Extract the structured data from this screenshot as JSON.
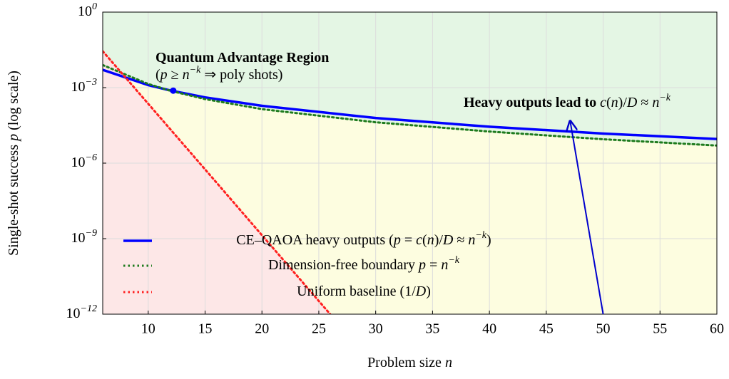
{
  "chart_data": {
    "type": "line",
    "xlabel": [
      {
        "text": "Problem size "
      },
      {
        "text": "n",
        "style": "italic"
      }
    ],
    "ylabel": [
      {
        "text": "Single-shot success "
      },
      {
        "text": "p",
        "style": "italic"
      },
      {
        "text": " (log scale)"
      }
    ],
    "xlim": [
      6,
      60
    ],
    "xticks": [
      10,
      15,
      20,
      25,
      30,
      35,
      40,
      45,
      50,
      55,
      60
    ],
    "ylim": [
      1e-12,
      1
    ],
    "yscale": "log",
    "yticks": [
      {
        "value": 1,
        "label": [
          {
            "text": "10"
          },
          {
            "text": "0",
            "style": "sup"
          }
        ]
      },
      {
        "value": 0.001,
        "label": [
          {
            "text": "10"
          },
          {
            "text": "−3",
            "style": "sup"
          }
        ]
      },
      {
        "value": 1e-06,
        "label": [
          {
            "text": "10"
          },
          {
            "text": "−6",
            "style": "sup"
          }
        ]
      },
      {
        "value": 1e-09,
        "label": [
          {
            "text": "10"
          },
          {
            "text": "−9",
            "style": "sup"
          }
        ]
      },
      {
        "value": 1e-12,
        "label": [
          {
            "text": "10"
          },
          {
            "text": "−12",
            "style": "sup"
          }
        ]
      }
    ],
    "grid": true,
    "legend": "lower left",
    "series": [
      {
        "name": [
          {
            "text": "CE–QAOA heavy outputs ("
          },
          {
            "text": "p",
            "style": "italic"
          },
          {
            "text": " = "
          },
          {
            "text": "c",
            "style": "italic"
          },
          {
            "text": "("
          },
          {
            "text": "n",
            "style": "italic"
          },
          {
            "text": ")/"
          },
          {
            "text": "D",
            "style": "italic"
          },
          {
            "text": " ≈ "
          },
          {
            "text": "n",
            "style": "italic"
          },
          {
            "text": "−k",
            "style": "sup"
          },
          {
            "text": ")"
          }
        ],
        "color": "#0000ff",
        "style": "solid",
        "x": [
          6,
          10,
          12,
          15,
          20,
          30,
          40,
          50,
          60
        ],
        "values": [
          0.0051,
          0.00126,
          0.00076,
          0.00041,
          0.00019,
          6.2e-05,
          2.8e-05,
          1.5e-05,
          9.1e-06
        ]
      },
      {
        "name": [
          {
            "text": "Dimension-free boundary "
          },
          {
            "text": "p",
            "style": "italic"
          },
          {
            "text": " = "
          },
          {
            "text": "n",
            "style": "italic"
          },
          {
            "text": "−k",
            "style": "sup"
          }
        ],
        "color": "#1e7b1e",
        "style": "dotted",
        "x": [
          6,
          10,
          12,
          15,
          20,
          30,
          40,
          50,
          60
        ],
        "values": [
          0.0079,
          0.0014,
          0.00074,
          0.00035,
          0.00014,
          4.2e-05,
          1.8e-05,
          8.9e-06,
          5e-06
        ]
      },
      {
        "name": [
          {
            "text": "Uniform baseline (1/"
          },
          {
            "text": "D",
            "style": "italic"
          },
          {
            "text": ")"
          }
        ],
        "color": "#ff2020",
        "style": "dotted",
        "x": [
          6,
          16,
          26
        ],
        "values": [
          0.028,
          1.7e-07,
          1e-12
        ]
      }
    ],
    "point": {
      "x": 12.2,
      "value": 0.00076,
      "color": "#0000ff"
    },
    "region_label": {
      "title": [
        {
          "text": "Quantum Advantage Region",
          "style": "bold"
        }
      ],
      "subtitle": [
        {
          "text": "("
        },
        {
          "text": "p",
          "style": "italic"
        },
        {
          "text": " ≥ "
        },
        {
          "text": "n",
          "style": "italic"
        },
        {
          "text": "−k",
          "style": "sup"
        },
        {
          "text": " ⇒ poly shots)"
        }
      ],
      "color": "#1e7b1e"
    },
    "annotation": {
      "text": [
        {
          "text": "Heavy outputs lead to ",
          "style": "bold"
        },
        {
          "text": "c",
          "style": "italic"
        },
        {
          "text": "("
        },
        {
          "text": "n",
          "style": "italic"
        },
        {
          "text": ")/"
        },
        {
          "text": "D",
          "style": "italic"
        },
        {
          "text": " ≈ "
        },
        {
          "text": "n",
          "style": "italic"
        },
        {
          "text": "−k",
          "style": "sup"
        }
      ],
      "color": "#0000cc",
      "arrow_from": {
        "x": 50,
        "value": 1e-12
      },
      "arrow_to": {
        "x": 47.1,
        "value": 4.7e-05
      }
    }
  }
}
